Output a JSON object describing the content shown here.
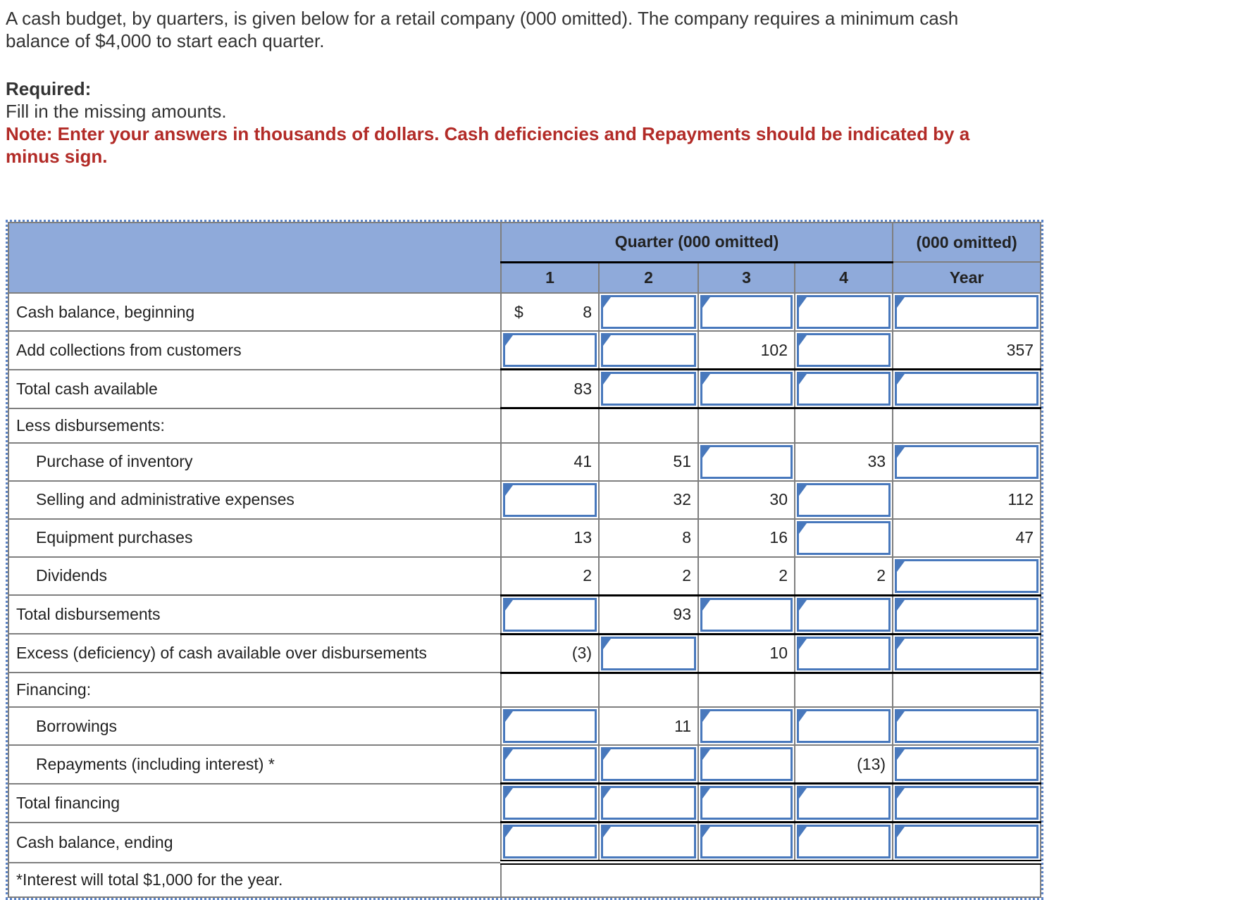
{
  "intro": {
    "paragraph_lines": [
      "A cash budget, by quarters, is given below for a retail company (000 omitted). The company requires a minimum cash",
      "balance of $4,000 to start each quarter."
    ],
    "required_label": "Required:",
    "instruction": "Fill in the missing amounts.",
    "note_lines": [
      "Note: Enter your answers in thousands of dollars. Cash deficiencies and Repayments should be indicated by a",
      "minus sign."
    ]
  },
  "table": {
    "quarter_group_header": "Quarter (000 omitted)",
    "year_group_header": "(000 omitted)",
    "quarter_columns": [
      "1",
      "2",
      "3",
      "4"
    ],
    "year_column": "Year",
    "rows": [
      {
        "label": "Cash balance, beginning",
        "indent": false,
        "rule": null,
        "cells": [
          {
            "t": "dollar",
            "sym": "$",
            "v": "8"
          },
          {
            "t": "input"
          },
          {
            "t": "input"
          },
          {
            "t": "input"
          },
          {
            "t": "input"
          }
        ]
      },
      {
        "label": "Add collections from customers",
        "indent": false,
        "rule": "black",
        "cells": [
          {
            "t": "input"
          },
          {
            "t": "input"
          },
          {
            "t": "static",
            "v": "102"
          },
          {
            "t": "input"
          },
          {
            "t": "static",
            "v": "357"
          }
        ]
      },
      {
        "label": "Total cash available",
        "indent": false,
        "rule": "black",
        "cells": [
          {
            "t": "static",
            "v": "83"
          },
          {
            "t": "input"
          },
          {
            "t": "input"
          },
          {
            "t": "input"
          },
          {
            "t": "input"
          }
        ]
      },
      {
        "label": "Less disbursements:",
        "indent": false,
        "rule": null,
        "cells": [
          {
            "t": "empty"
          },
          {
            "t": "empty"
          },
          {
            "t": "empty"
          },
          {
            "t": "empty"
          },
          {
            "t": "empty"
          }
        ]
      },
      {
        "label": "Purchase of inventory",
        "indent": true,
        "rule": null,
        "cells": [
          {
            "t": "static",
            "v": "41"
          },
          {
            "t": "static",
            "v": "51"
          },
          {
            "t": "input"
          },
          {
            "t": "static",
            "v": "33"
          },
          {
            "t": "input"
          }
        ]
      },
      {
        "label": "Selling and administrative expenses",
        "indent": true,
        "rule": null,
        "cells": [
          {
            "t": "input"
          },
          {
            "t": "static",
            "v": "32"
          },
          {
            "t": "static",
            "v": "30"
          },
          {
            "t": "input"
          },
          {
            "t": "static",
            "v": "112"
          }
        ]
      },
      {
        "label": "Equipment purchases",
        "indent": true,
        "rule": null,
        "cells": [
          {
            "t": "static",
            "v": "13"
          },
          {
            "t": "static",
            "v": "8"
          },
          {
            "t": "static",
            "v": "16"
          },
          {
            "t": "input"
          },
          {
            "t": "static",
            "v": "47"
          }
        ]
      },
      {
        "label": "Dividends",
        "indent": true,
        "rule": "black",
        "cells": [
          {
            "t": "static",
            "v": "2"
          },
          {
            "t": "static",
            "v": "2"
          },
          {
            "t": "static",
            "v": "2"
          },
          {
            "t": "static",
            "v": "2"
          },
          {
            "t": "input"
          }
        ]
      },
      {
        "label": "Total disbursements",
        "indent": false,
        "rule": "black",
        "cells": [
          {
            "t": "input"
          },
          {
            "t": "static",
            "v": "93"
          },
          {
            "t": "input"
          },
          {
            "t": "input"
          },
          {
            "t": "input"
          }
        ]
      },
      {
        "label": "Excess (deficiency) of cash available over disbursements",
        "indent": false,
        "rule": "black",
        "cells": [
          {
            "t": "static",
            "v": "(3)"
          },
          {
            "t": "input"
          },
          {
            "t": "static",
            "v": "10"
          },
          {
            "t": "input"
          },
          {
            "t": "input"
          }
        ]
      },
      {
        "label": "Financing:",
        "indent": false,
        "rule": null,
        "cells": [
          {
            "t": "empty"
          },
          {
            "t": "empty"
          },
          {
            "t": "empty"
          },
          {
            "t": "empty"
          },
          {
            "t": "empty"
          }
        ]
      },
      {
        "label": "Borrowings",
        "indent": true,
        "rule": null,
        "cells": [
          {
            "t": "input"
          },
          {
            "t": "static",
            "v": "11"
          },
          {
            "t": "input"
          },
          {
            "t": "input"
          },
          {
            "t": "input"
          }
        ]
      },
      {
        "label": "Repayments (including interest) *",
        "indent": true,
        "rule": "black",
        "cells": [
          {
            "t": "input"
          },
          {
            "t": "input"
          },
          {
            "t": "input"
          },
          {
            "t": "static",
            "v": "(13)"
          },
          {
            "t": "input"
          }
        ]
      },
      {
        "label": "Total financing",
        "indent": false,
        "rule": "black",
        "cells": [
          {
            "t": "input"
          },
          {
            "t": "input"
          },
          {
            "t": "input"
          },
          {
            "t": "input"
          },
          {
            "t": "input"
          }
        ]
      },
      {
        "label": "Cash balance, ending",
        "indent": false,
        "rule": "double",
        "cells": [
          {
            "t": "input"
          },
          {
            "t": "input"
          },
          {
            "t": "input"
          },
          {
            "t": "input"
          },
          {
            "t": "input"
          }
        ]
      },
      {
        "label": "*Interest will total $1,000 for the year.",
        "indent": false,
        "rule": null,
        "note_row": true
      }
    ]
  },
  "colors": {
    "header_blue": "#8FAADA",
    "input_border_blue": "#4878BC",
    "selection_dotted_blue": "#5B84C8",
    "grid_gray": "#7F7F7F",
    "subtotal_black": "#000000",
    "note_red": "#B22B27"
  }
}
